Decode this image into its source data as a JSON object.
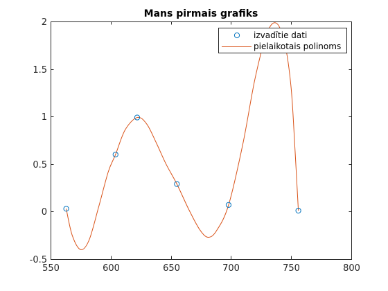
{
  "chart_data": {
    "type": "line",
    "title": "Mans pirmais grafiks",
    "xlabel": "",
    "ylabel": "",
    "xlim": [
      550,
      800
    ],
    "ylim": [
      -0.5,
      2
    ],
    "xticks": [
      550,
      600,
      650,
      700,
      750,
      800
    ],
    "yticks": [
      -0.5,
      0,
      0.5,
      1,
      1.5,
      2
    ],
    "xtick_labels": [
      "550",
      "600",
      "650",
      "700",
      "750",
      "800"
    ],
    "ytick_labels": [
      "-0.5",
      "0",
      "0.5",
      "1",
      "1.5",
      "2"
    ],
    "grid": false,
    "legend_position": "top-right",
    "legend": [
      "izvadītie dati",
      "pielaikotais polinoms"
    ],
    "series": [
      {
        "name": "izvadītie dati",
        "style": "markers",
        "marker": "circle",
        "color": "#0072bd",
        "x": [
          563,
          604,
          622,
          655,
          698,
          756
        ],
        "y": [
          0.03,
          0.6,
          0.99,
          0.29,
          0.07,
          0.01
        ]
      },
      {
        "name": "pielaikotais polinoms",
        "style": "line",
        "color": "#d95319",
        "x": [
          563,
          568,
          575,
          582,
          590,
          598,
          604,
          612,
          622,
          630,
          638,
          646,
          655,
          665,
          674,
          681,
          688,
          698,
          710,
          720,
          730,
          738,
          745,
          750,
          753,
          756
        ],
        "y": [
          0.03,
          -0.25,
          -0.4,
          -0.3,
          0.05,
          0.42,
          0.6,
          0.86,
          0.99,
          0.92,
          0.72,
          0.5,
          0.29,
          0.02,
          -0.19,
          -0.27,
          -0.2,
          0.07,
          0.72,
          1.4,
          1.88,
          1.98,
          1.75,
          1.3,
          0.7,
          0.01
        ]
      }
    ]
  }
}
